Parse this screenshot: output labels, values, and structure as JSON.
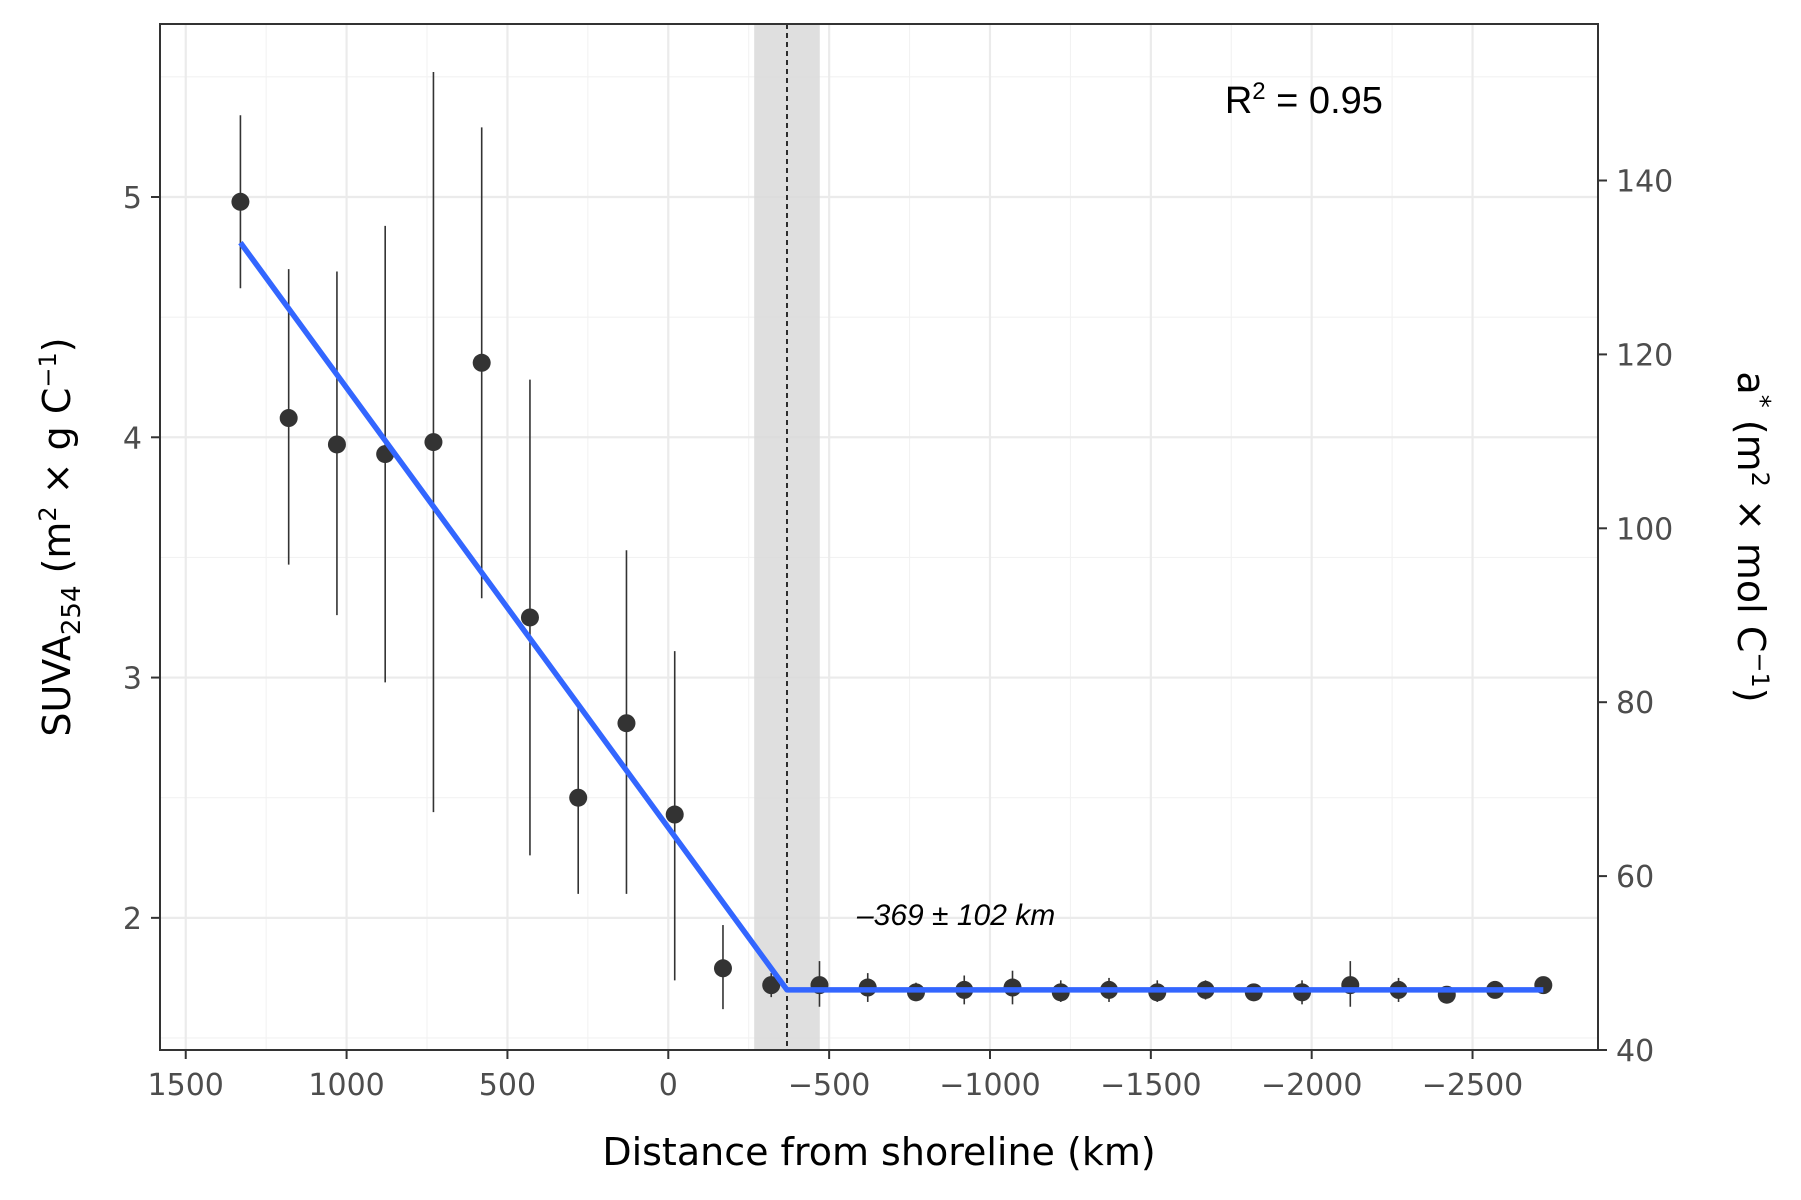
{
  "chart_data": {
    "type": "scatter",
    "title": "",
    "xlabel": "Distance from shoreline (km)",
    "ylabel": {
      "base": "SUVA",
      "sub": "254",
      "unit_open": " (m",
      "unit_sup": "2",
      "unit_mid": " × g C",
      "unit_sup2": "−1",
      "unit_close": ")"
    },
    "y2label": {
      "base": "a",
      "base_sup": "*",
      "unit_open": " (m",
      "unit_sup": "2",
      "unit_mid": " × mol C",
      "unit_sup2": "−1",
      "unit_close": ")"
    },
    "xlim": [
      1580,
      -2890
    ],
    "ylim": [
      1.45,
      5.72
    ],
    "y2lim": [
      40,
      158
    ],
    "x_reversed": true,
    "x_ticks": [
      1500,
      1000,
      500,
      0,
      -500,
      -1000,
      -1500,
      -2000,
      -2500
    ],
    "x_tick_labels": [
      "1500",
      "1000",
      "500",
      "0",
      "−500",
      "−1000",
      "−1500",
      "−2000",
      "−2500"
    ],
    "y_ticks": [
      2,
      3,
      4,
      5
    ],
    "y_tick_labels": [
      "2",
      "3",
      "4",
      "5"
    ],
    "y2_ticks": [
      40,
      60,
      80,
      100,
      120,
      140
    ],
    "y2_tick_labels": [
      "40",
      "60",
      "80",
      "100",
      "120",
      "140"
    ],
    "grid": true,
    "points": [
      {
        "x": 1330,
        "y": 4.98,
        "ymin": 4.62,
        "ymax": 5.34
      },
      {
        "x": 1180,
        "y": 4.08,
        "ymin": 3.47,
        "ymax": 4.7
      },
      {
        "x": 1030,
        "y": 3.97,
        "ymin": 3.26,
        "ymax": 4.69
      },
      {
        "x": 880,
        "y": 3.93,
        "ymin": 2.98,
        "ymax": 4.88
      },
      {
        "x": 730,
        "y": 3.98,
        "ymin": 2.44,
        "ymax": 5.52
      },
      {
        "x": 580,
        "y": 4.31,
        "ymin": 3.33,
        "ymax": 5.29
      },
      {
        "x": 430,
        "y": 3.25,
        "ymin": 2.26,
        "ymax": 4.24
      },
      {
        "x": 280,
        "y": 2.5,
        "ymin": 2.1,
        "ymax": 2.88
      },
      {
        "x": 130,
        "y": 2.81,
        "ymin": 2.1,
        "ymax": 3.53
      },
      {
        "x": -20,
        "y": 2.43,
        "ymin": 1.74,
        "ymax": 3.11
      },
      {
        "x": -170,
        "y": 1.79,
        "ymin": 1.62,
        "ymax": 1.97
      },
      {
        "x": -320,
        "y": 1.72,
        "ymin": 1.67,
        "ymax": 1.77
      },
      {
        "x": -470,
        "y": 1.72,
        "ymin": 1.63,
        "ymax": 1.82
      },
      {
        "x": -620,
        "y": 1.71,
        "ymin": 1.65,
        "ymax": 1.77
      },
      {
        "x": -770,
        "y": 1.69,
        "ymin": 1.66,
        "ymax": 1.73
      },
      {
        "x": -920,
        "y": 1.7,
        "ymin": 1.64,
        "ymax": 1.76
      },
      {
        "x": -1070,
        "y": 1.71,
        "ymin": 1.64,
        "ymax": 1.78
      },
      {
        "x": -1220,
        "y": 1.69,
        "ymin": 1.65,
        "ymax": 1.74
      },
      {
        "x": -1370,
        "y": 1.7,
        "ymin": 1.65,
        "ymax": 1.75
      },
      {
        "x": -1520,
        "y": 1.69,
        "ymin": 1.65,
        "ymax": 1.74
      },
      {
        "x": -1670,
        "y": 1.7,
        "ymin": 1.66,
        "ymax": 1.74
      },
      {
        "x": -1820,
        "y": 1.69,
        "ymin": 1.67,
        "ymax": 1.71
      },
      {
        "x": -1970,
        "y": 1.69,
        "ymin": 1.64,
        "ymax": 1.74
      },
      {
        "x": -2120,
        "y": 1.72,
        "ymin": 1.63,
        "ymax": 1.82
      },
      {
        "x": -2270,
        "y": 1.7,
        "ymin": 1.65,
        "ymax": 1.75
      },
      {
        "x": -2420,
        "y": 1.68,
        "ymin": 1.66,
        "ymax": 1.71
      },
      {
        "x": -2570,
        "y": 1.7,
        "ymin": 1.67,
        "ymax": 1.73
      },
      {
        "x": -2720,
        "y": 1.72,
        "ymin": 1.69,
        "ymax": 1.75
      }
    ],
    "fit_line": {
      "x": [
        1330,
        -369,
        -2720
      ],
      "y": [
        4.81,
        1.7,
        1.7
      ],
      "color": "#3366ff"
    },
    "breakpoint": {
      "x": -369,
      "band": [
        -267,
        -471
      ],
      "label": "–369 ± 102 km"
    },
    "r2_label": {
      "base": "R",
      "sup": "2",
      "rest": " = 0.95"
    },
    "point_color": "#333333",
    "band_color": "#d9d9d9"
  }
}
